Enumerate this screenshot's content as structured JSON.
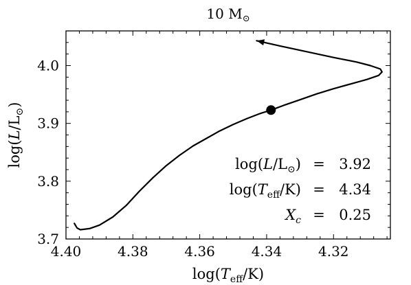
{
  "chart_data": {
    "type": "line",
    "title": "10 M⊙",
    "xlabel": "log(Teff/K)",
    "ylabel": "log(L/L⊙)",
    "xlim": [
      4.4,
      4.303
    ],
    "ylim": [
      3.7,
      4.06
    ],
    "x_ticks": [
      4.4,
      4.38,
      4.36,
      4.34,
      4.32
    ],
    "x_tick_labels": [
      "4.40",
      "4.38",
      "4.36",
      "4.34",
      "4.32"
    ],
    "y_ticks": [
      3.7,
      3.8,
      3.9,
      4.0
    ],
    "y_tick_labels": [
      "3.7",
      "3.8",
      "3.9",
      "4.0"
    ],
    "x_inverted": true,
    "grid": false,
    "legend": "none",
    "ticks_on_all_sides": true,
    "series": [
      {
        "x": [
          4.3975,
          4.3967,
          4.3957,
          4.393,
          4.39,
          4.386,
          4.382,
          4.378,
          4.374,
          4.37,
          4.366,
          4.362,
          4.358,
          4.354,
          4.35,
          4.346,
          4.342,
          4.3387,
          4.335,
          4.33,
          4.325,
          4.32,
          4.315,
          4.31,
          4.3065,
          4.3055,
          4.306,
          4.309,
          4.313,
          4.32,
          4.328,
          4.336,
          4.343
        ],
        "y": [
          3.727,
          3.719,
          3.716,
          3.718,
          3.724,
          3.738,
          3.758,
          3.783,
          3.806,
          3.827,
          3.845,
          3.861,
          3.874,
          3.887,
          3.898,
          3.908,
          3.917,
          3.923,
          3.931,
          3.941,
          3.951,
          3.96,
          3.968,
          3.976,
          3.983,
          3.989,
          3.994,
          4.0,
          4.006,
          4.014,
          4.024,
          4.034,
          4.043
        ]
      }
    ],
    "marker": {
      "x": 4.3387,
      "y": 3.923
    },
    "annotations": [
      {
        "label_pre": "log(",
        "label_var": "L",
        "label_mid": "/L",
        "label_sub": "⊙",
        "label_post": ")",
        "eq": "=",
        "value": "3.92"
      },
      {
        "label_pre": "log(",
        "label_var": "T",
        "label_mid": "/K",
        "label_sub": "eff",
        "label_post": ")",
        "eq": "=",
        "value": "4.34"
      },
      {
        "label_pre": "",
        "label_var": "X",
        "label_mid": "",
        "label_sub": "c",
        "label_post": "",
        "eq": "=",
        "value": "0.25"
      }
    ],
    "colors": {
      "line": "#000000",
      "marker": "#000000"
    }
  }
}
